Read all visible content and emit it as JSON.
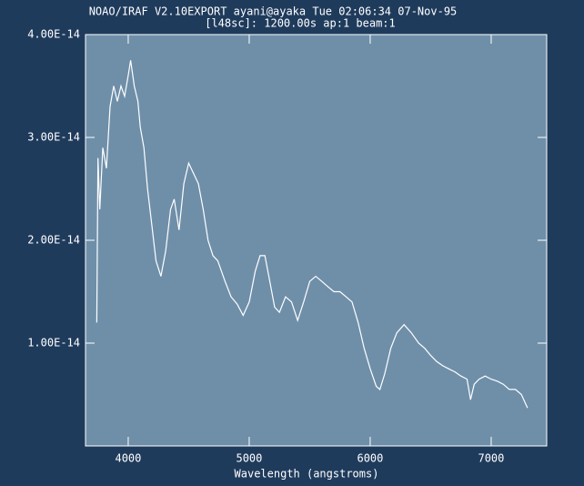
{
  "chart_data": {
    "type": "line",
    "title": "NOAO/IRAF V2.10EXPORT ayani@ayaka Tue 02:06:34 07-Nov-95",
    "subtitle": "[l48sc]:  1200.00s ap:1 beam:1",
    "x_label": "Wavelength (angstroms)",
    "xlim": [
      3647,
      7459
    ],
    "xticks": [
      4000,
      5000,
      6000,
      7000
    ],
    "ylim": [
      0,
      4e-14
    ],
    "yticks": [
      {
        "value": 1e-14,
        "label": "1.00E-14"
      },
      {
        "value": 2e-14,
        "label": "2.00E-14"
      },
      {
        "value": 3e-14,
        "label": "3.00E-14"
      },
      {
        "value": 4e-14,
        "label": "4.00E-14"
      }
    ],
    "x": [
      3740,
      3750,
      3765,
      3790,
      3820,
      3850,
      3880,
      3910,
      3940,
      3970,
      4000,
      4020,
      4050,
      4080,
      4100,
      4130,
      4160,
      4190,
      4230,
      4270,
      4310,
      4350,
      4380,
      4420,
      4460,
      4500,
      4540,
      4580,
      4620,
      4660,
      4700,
      4740,
      4800,
      4850,
      4900,
      4950,
      5000,
      5050,
      5090,
      5130,
      5170,
      5210,
      5250,
      5300,
      5350,
      5400,
      5450,
      5500,
      5550,
      5600,
      5650,
      5700,
      5750,
      5800,
      5850,
      5900,
      5950,
      6000,
      6050,
      6080,
      6120,
      6170,
      6220,
      6280,
      6340,
      6400,
      6450,
      6500,
      6550,
      6600,
      6650,
      6700,
      6750,
      6800,
      6830,
      6860,
      6900,
      6950,
      7000,
      7050,
      7100,
      7150,
      7200,
      7250,
      7300
    ],
    "series": [
      {
        "name": "l48sc",
        "color": "#ffffff",
        "values": [
          1.2e-14,
          2.8e-14,
          2.3e-14,
          2.9e-14,
          2.7e-14,
          3.3e-14,
          3.5e-14,
          3.35e-14,
          3.5e-14,
          3.4e-14,
          3.6e-14,
          3.75e-14,
          3.5e-14,
          3.35e-14,
          3.1e-14,
          2.9e-14,
          2.5e-14,
          2.2e-14,
          1.8e-14,
          1.65e-14,
          1.9e-14,
          2.3e-14,
          2.4e-14,
          2.1e-14,
          2.55e-14,
          2.75e-14,
          2.65e-14,
          2.55e-14,
          2.3e-14,
          2e-14,
          1.85e-14,
          1.8e-14,
          1.6e-14,
          1.45e-14,
          1.38e-14,
          1.27e-14,
          1.4e-14,
          1.7e-14,
          1.85e-14,
          1.85e-14,
          1.6e-14,
          1.35e-14,
          1.3e-14,
          1.45e-14,
          1.4e-14,
          1.22e-14,
          1.4e-14,
          1.6e-14,
          1.65e-14,
          1.6e-14,
          1.55e-14,
          1.5e-14,
          1.5e-14,
          1.45e-14,
          1.4e-14,
          1.2e-14,
          9.5e-15,
          7.5e-15,
          5.8e-15,
          5.5e-15,
          7e-15,
          9.5e-15,
          1.1e-14,
          1.18e-14,
          1.1e-14,
          1e-14,
          9.5e-15,
          8.8e-15,
          8.2e-15,
          7.8e-15,
          7.5e-15,
          7.2e-15,
          6.8e-15,
          6.5e-15,
          4.5e-15,
          6e-15,
          6.5e-15,
          6.8e-15,
          6.5e-15,
          6.3e-15,
          6e-15,
          5.5e-15,
          5.5e-15,
          5e-15,
          3.7e-15
        ]
      }
    ],
    "background": "#1f3b5c",
    "plot_color": "#6f8fa9"
  }
}
